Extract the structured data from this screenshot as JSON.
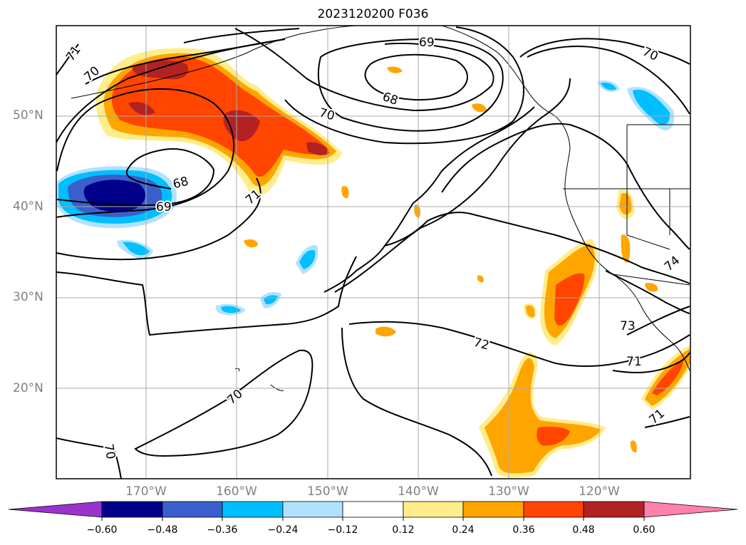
{
  "title": "2023120200 F036",
  "lat_labels": [
    "50°N",
    "40°N",
    "30°N",
    "20°N"
  ],
  "lon_labels": [
    "170°W",
    "160°W",
    "150°W",
    "140°W",
    "130°W",
    "120°W"
  ],
  "contour_labels": [
    "71",
    "70",
    "69",
    "68",
    "70",
    "68",
    "69",
    "71",
    "70",
    "74",
    "73",
    "72",
    "71",
    "70",
    "71",
    "70"
  ],
  "colorbar": {
    "labels": [
      "−0.60",
      "−0.48",
      "−0.36",
      "−0.24",
      "−0.12",
      "0.12",
      "0.24",
      "0.36",
      "0.48",
      "0.60"
    ],
    "colors": [
      "#9a32cd",
      "#00008b",
      "#3a5fcd",
      "#00bfff",
      "#b0e2ff",
      "#ffffff",
      "#ffec8b",
      "#ffa500",
      "#ff4500",
      "#b22222",
      "#ff82ab"
    ]
  }
}
